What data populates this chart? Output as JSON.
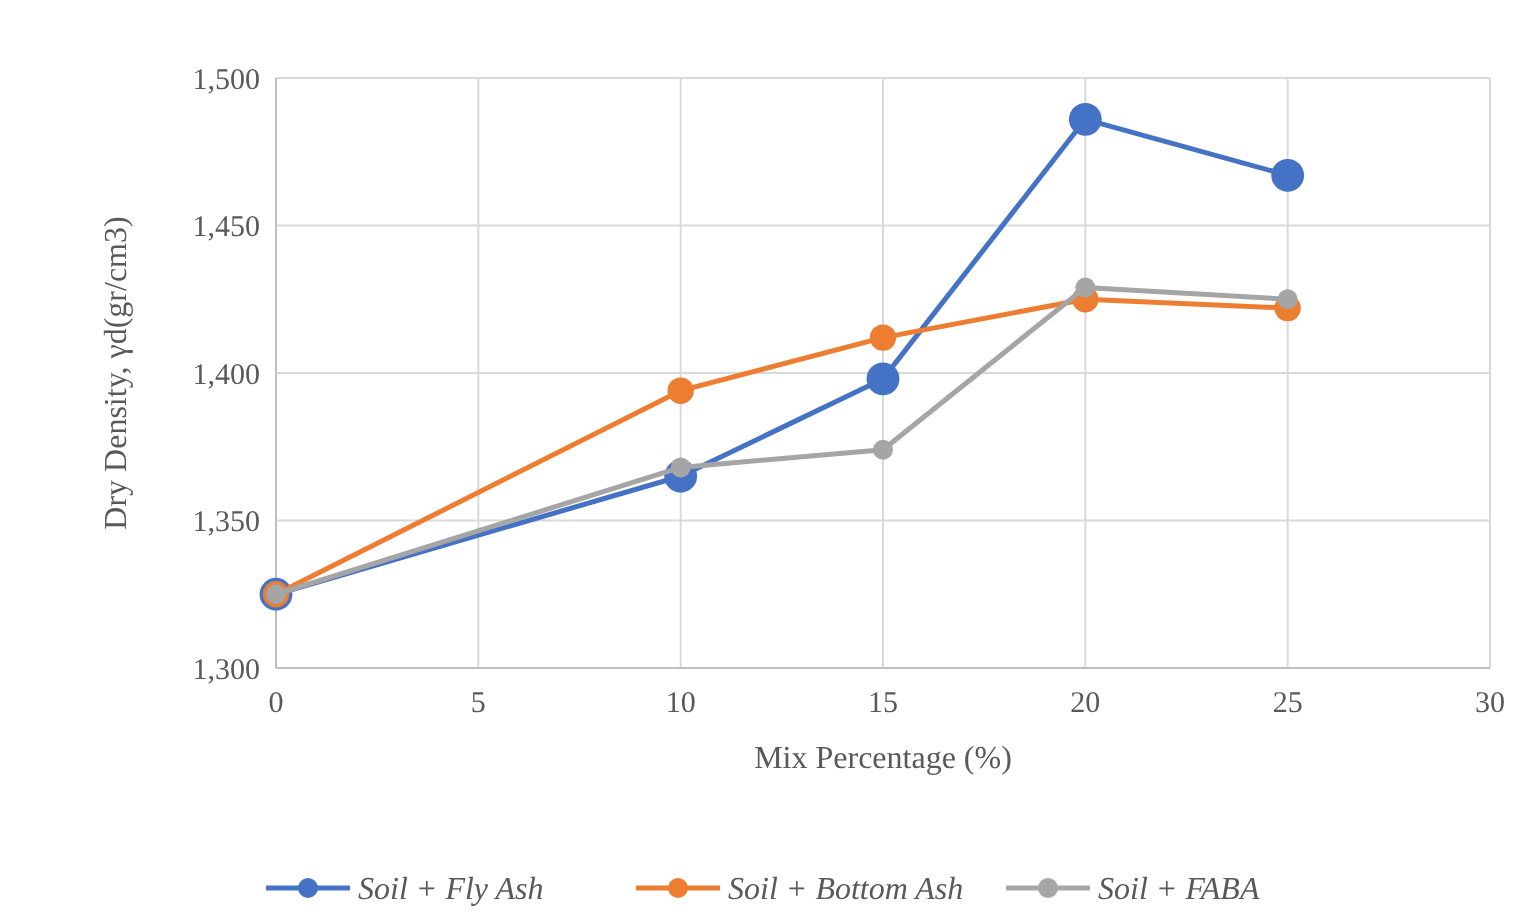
{
  "chart_data": {
    "type": "line",
    "xlabel": "Mix Percentage  (%)",
    "ylabel": "Dry Density, γd(gr/cm3)",
    "x": [
      0,
      10,
      15,
      20,
      25
    ],
    "series": [
      {
        "name": "Soil + Fly Ash",
        "color": "#4472c4",
        "values": [
          1325,
          1365,
          1398,
          1486,
          1467
        ]
      },
      {
        "name": "Soil + Bottom Ash",
        "color": "#ed7d31",
        "values": [
          1325,
          1394,
          1412,
          1425,
          1422
        ]
      },
      {
        "name": "Soil + FABA",
        "color": "#a5a5a5",
        "values": [
          1325,
          1368,
          1374,
          1429,
          1425
        ]
      }
    ],
    "xlim": [
      0,
      30
    ],
    "xticks": [
      0,
      5,
      10,
      15,
      20,
      25,
      30
    ],
    "ylim": [
      1300,
      1500
    ],
    "yticks": [
      {
        "value": 1300,
        "label": "1,300"
      },
      {
        "value": 1350,
        "label": "1,350"
      },
      {
        "value": 1400,
        "label": "1,400"
      },
      {
        "value": 1450,
        "label": "1,450"
      },
      {
        "value": 1500,
        "label": "1,500"
      }
    ],
    "grid": true,
    "legend": "bottom",
    "marker": "circle",
    "line_style": "solid"
  }
}
